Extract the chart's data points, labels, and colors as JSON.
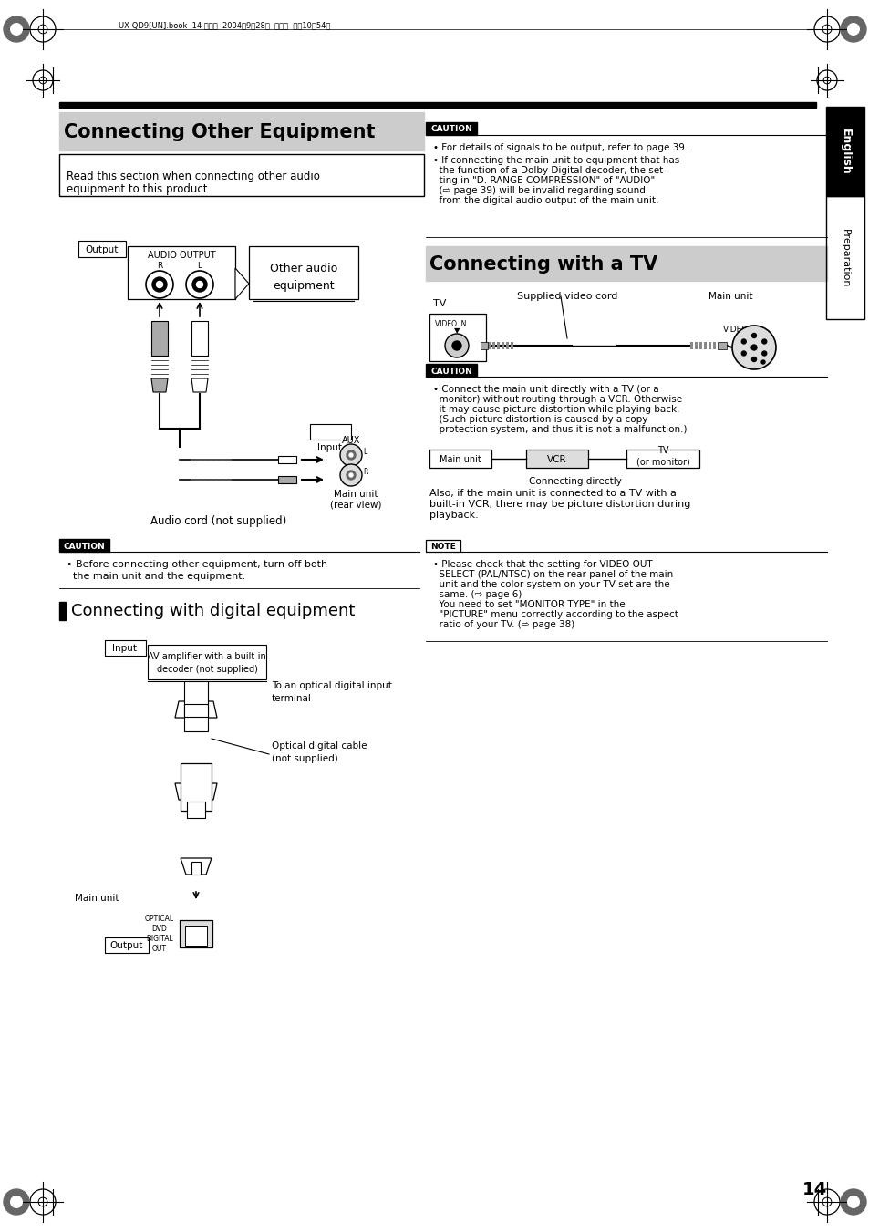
{
  "bg_color": "#ffffff",
  "page_number": "14",
  "header_text": "UX-QD9[UN].book  14 ページ  2004年9月28日  火曜日  午前10時54分",
  "side_tab_english": "English",
  "side_tab_prep": "Preparation",
  "section1_title": "Connecting Other Equipment",
  "section1_intro_line1": "Read this section when connecting other audio",
  "section1_intro_line2": "equipment to this product.",
  "caution1_text_line1": "• Before connecting other equipment, turn off both",
  "caution1_text_line2": "  the main unit and the equipment.",
  "section2_title": "Connecting with digital equipment",
  "section3_title": "Connecting with a TV",
  "caution2_bullet1": "• For details of signals to be output, refer to page 39.",
  "caution2_bullet2_lines": [
    "• If connecting the main unit to equipment that has",
    "  the function of a Dolby Digital decoder, the set-",
    "  ting in \"D. RANGE COMPRESSION\" of \"AUDIO\"",
    "  (⇨ page 39) will be invalid regarding sound",
    "  from the digital audio output of the main unit."
  ],
  "caution3_lines": [
    "• Connect the main unit directly with a TV (or a",
    "  monitor) without routing through a VCR. Otherwise",
    "  it may cause picture distortion while playing back.",
    "  (Such picture distortion is caused by a copy",
    "  protection system, and thus it is not a malfunction.)"
  ],
  "also_text_lines": [
    "Also, if the main unit is connected to a TV with a",
    "built-in VCR, there may be picture distortion during",
    "playback."
  ],
  "note_lines": [
    "• Please check that the setting for VIDEO OUT",
    "  SELECT (PAL/NTSC) on the rear panel of the main",
    "  unit and the color system on your TV set are the",
    "  same. (⇨ page 6)",
    "  You need to set \"MONITOR TYPE\" in the",
    "  \"PICTURE\" menu correctly according to the aspect",
    "  ratio of your TV. (⇨ page 38)"
  ]
}
